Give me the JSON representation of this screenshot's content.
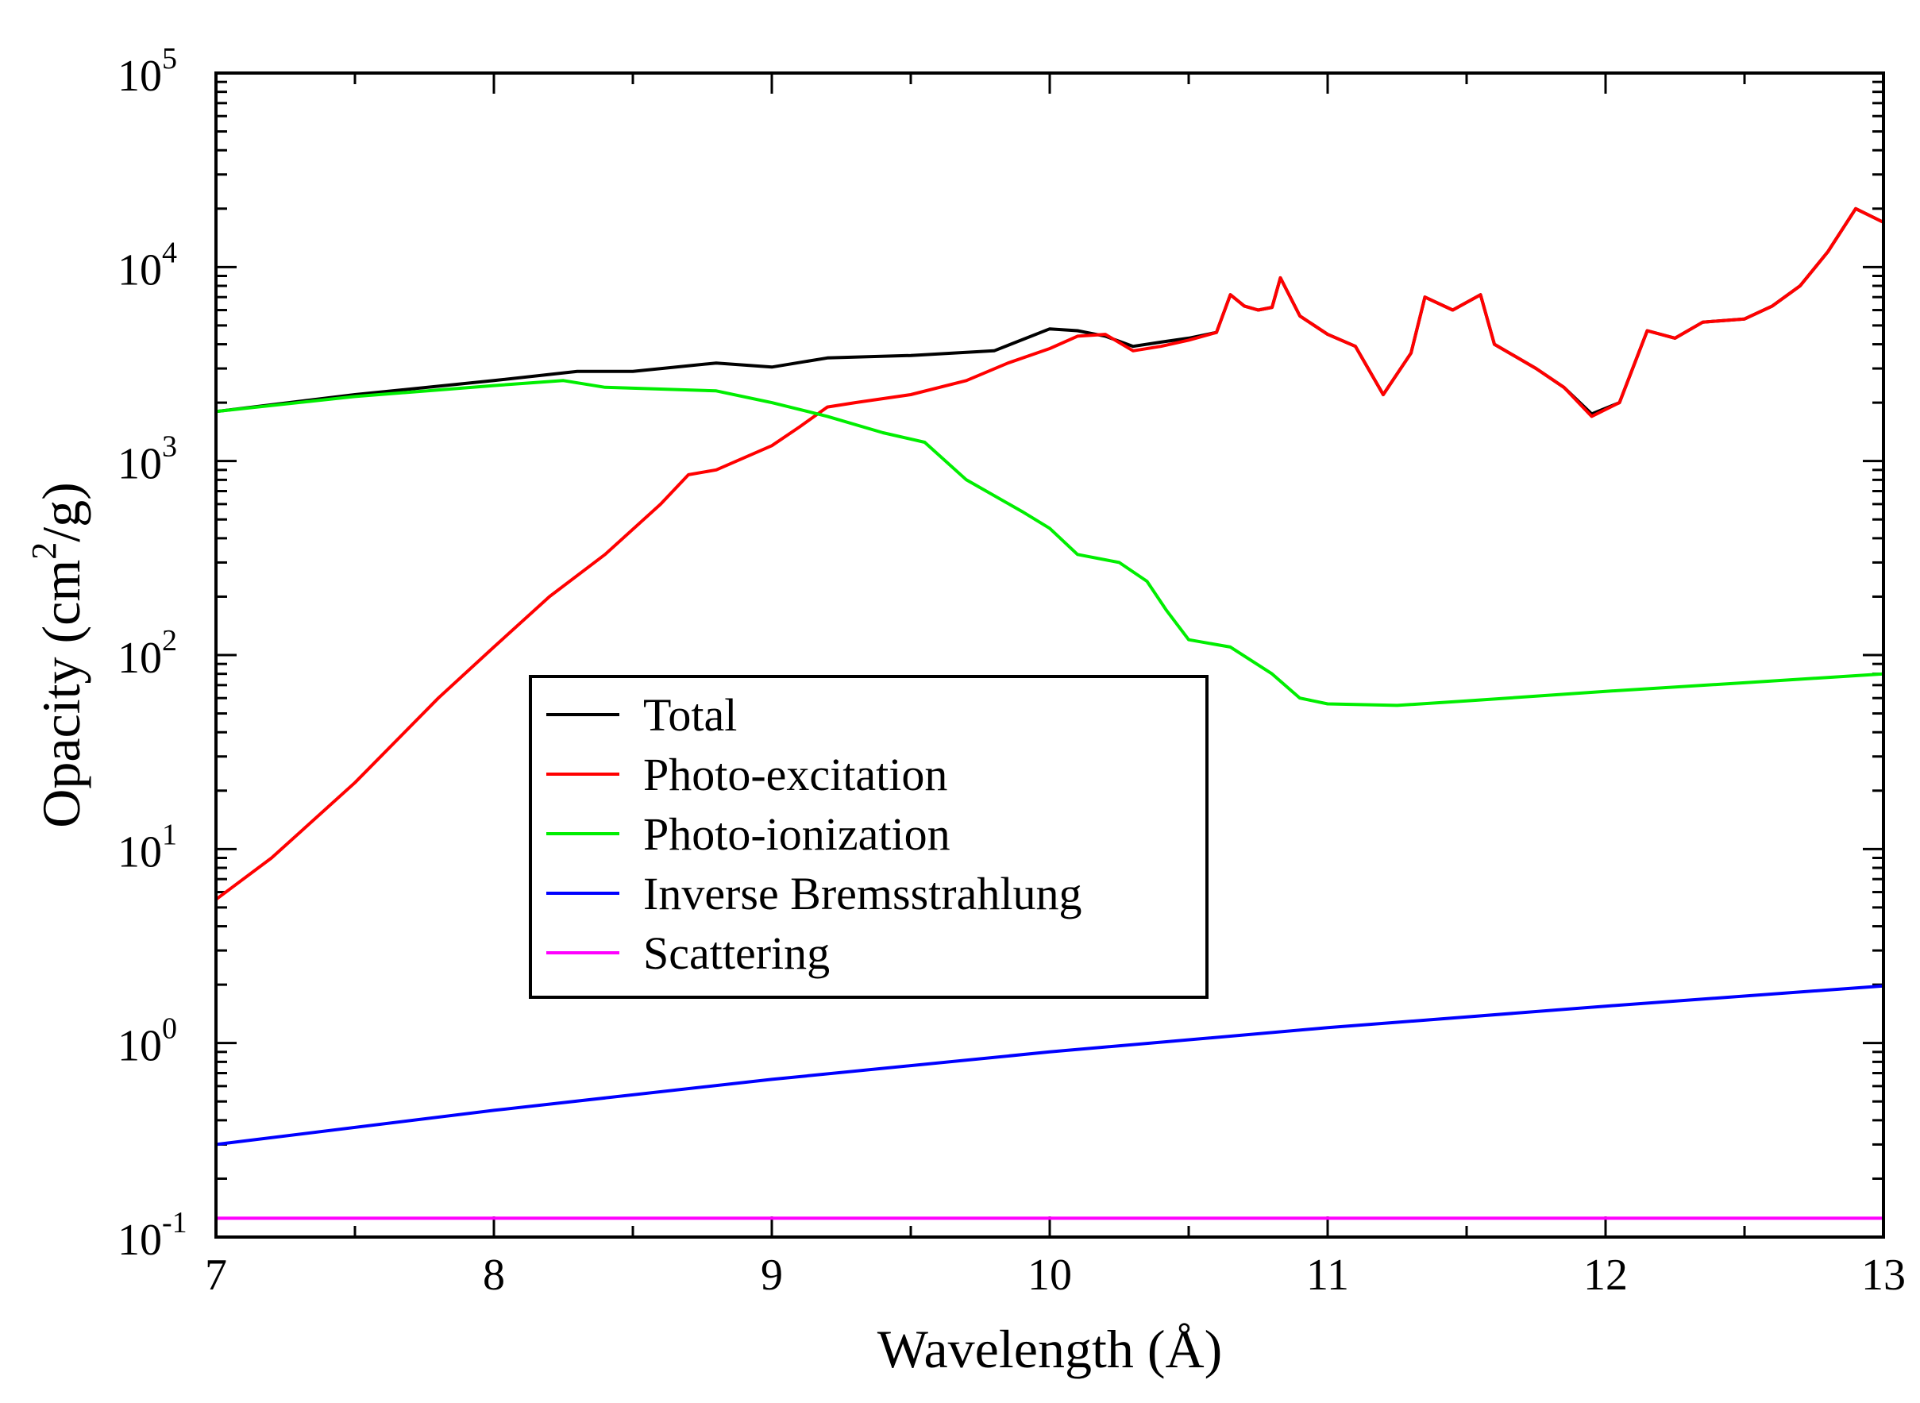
{
  "chart_data": {
    "type": "line",
    "title": "",
    "xlabel": "Wavelength (Å)",
    "ylabel_prefix": "Opacity (cm",
    "ylabel_sup": "2",
    "ylabel_suffix": "/g)",
    "xlim": [
      7,
      13
    ],
    "ylim_log10": [
      -1,
      5
    ],
    "y_scale": "log",
    "x_ticks": [
      "7",
      "8",
      "9",
      "10",
      "11",
      "12",
      "13"
    ],
    "y_tick_base": "10",
    "y_tick_exponents": [
      "-1",
      "0",
      "1",
      "2",
      "3",
      "4",
      "5"
    ],
    "legend_position": "center-left",
    "series": [
      {
        "name": "Total",
        "color": "#000000",
        "x": [
          7.0,
          7.5,
          8.0,
          8.3,
          8.5,
          8.8,
          9.0,
          9.2,
          9.5,
          9.8,
          10.0,
          10.1,
          10.2,
          10.3,
          10.4,
          10.5,
          10.6,
          10.65,
          10.7,
          10.75,
          10.8,
          10.83,
          10.9,
          11.0,
          11.1,
          11.2,
          11.3,
          11.35,
          11.45,
          11.55,
          11.6,
          11.75,
          11.85,
          11.95,
          12.05,
          12.15,
          12.25,
          12.35,
          12.5,
          12.6,
          12.7,
          12.8,
          12.9,
          13.0
        ],
        "y": [
          1800,
          2200,
          2600,
          2900,
          2900,
          3200,
          3050,
          3400,
          3500,
          3700,
          4800,
          4700,
          4400,
          3900,
          4100,
          4300,
          4600,
          7200,
          6300,
          6000,
          6200,
          8800,
          5600,
          4500,
          3900,
          2200,
          3600,
          7000,
          6000,
          7200,
          4000,
          3000,
          2400,
          1750,
          2000,
          4700,
          4300,
          5200,
          5400,
          6300,
          8000,
          12000,
          20000,
          17000
        ]
      },
      {
        "name": "Photo-excitation",
        "color": "#ff0000",
        "x": [
          7.0,
          7.2,
          7.5,
          7.8,
          8.0,
          8.2,
          8.4,
          8.6,
          8.7,
          8.8,
          9.0,
          9.1,
          9.2,
          9.3,
          9.5,
          9.7,
          9.85,
          10.0,
          10.1,
          10.2,
          10.3,
          10.4,
          10.5,
          10.6,
          10.65,
          10.7,
          10.75,
          10.8,
          10.83,
          10.9,
          11.0,
          11.1,
          11.2,
          11.3,
          11.35,
          11.45,
          11.55,
          11.6,
          11.75,
          11.85,
          11.95,
          12.05,
          12.15,
          12.25,
          12.35,
          12.5,
          12.6,
          12.7,
          12.8,
          12.9,
          13.0
        ],
        "y": [
          5.5,
          9,
          22,
          60,
          110,
          200,
          330,
          600,
          850,
          900,
          1200,
          1500,
          1900,
          2000,
          2200,
          2600,
          3200,
          3800,
          4400,
          4500,
          3700,
          3900,
          4200,
          4600,
          7200,
          6300,
          6000,
          6200,
          8800,
          5600,
          4500,
          3900,
          2200,
          3600,
          7000,
          6000,
          7200,
          4000,
          3000,
          2400,
          1700,
          2000,
          4700,
          4300,
          5200,
          5400,
          6300,
          8000,
          12000,
          20000,
          17000
        ]
      },
      {
        "name": "Photo-ionization",
        "color": "#00ee00",
        "x": [
          7.0,
          7.5,
          8.0,
          8.25,
          8.4,
          8.8,
          9.0,
          9.2,
          9.4,
          9.55,
          9.7,
          9.9,
          10.0,
          10.1,
          10.25,
          10.35,
          10.42,
          10.5,
          10.65,
          10.8,
          10.9,
          11.0,
          11.25,
          11.5,
          12.0,
          12.5,
          13.0
        ],
        "y": [
          1800,
          2150,
          2450,
          2600,
          2400,
          2300,
          2000,
          1700,
          1400,
          1250,
          800,
          550,
          450,
          330,
          300,
          240,
          170,
          120,
          110,
          80,
          60,
          56,
          55,
          58,
          65,
          72,
          80
        ]
      },
      {
        "name": "Inverse Bremsstrahlung",
        "color": "#0000ff",
        "x": [
          7.0,
          8.0,
          9.0,
          10.0,
          11.0,
          12.0,
          13.0
        ],
        "y": [
          0.3,
          0.45,
          0.65,
          0.9,
          1.2,
          1.55,
          1.97
        ]
      },
      {
        "name": "Scattering",
        "color": "#ff00ff",
        "x": [
          7.0,
          13.0
        ],
        "y": [
          0.125,
          0.125
        ]
      }
    ]
  }
}
